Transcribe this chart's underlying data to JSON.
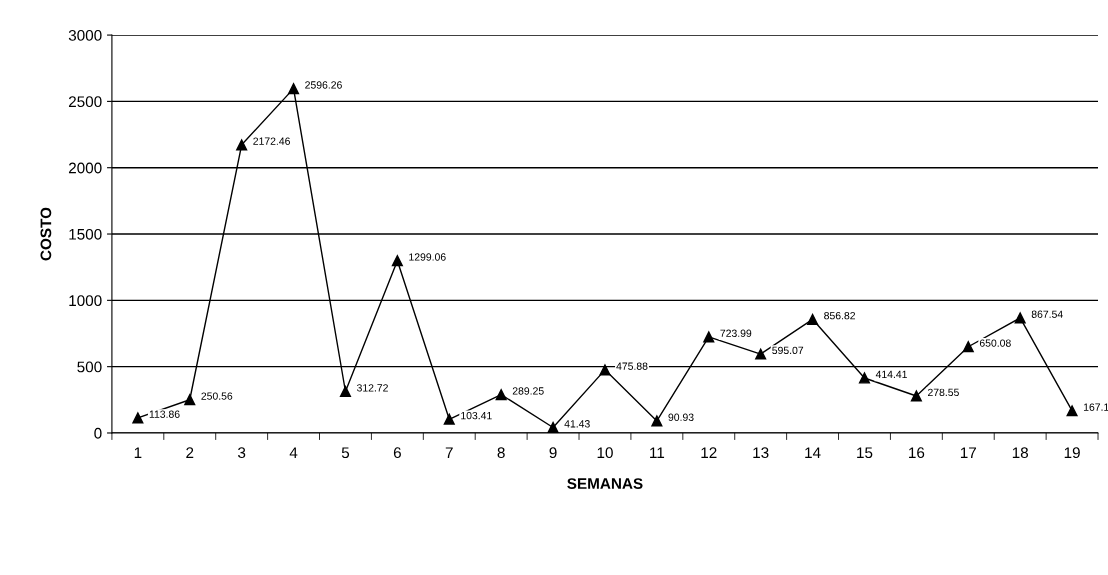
{
  "chart_data": {
    "type": "line",
    "xlabel": "SEMANAS",
    "ylabel": "COSTO",
    "categories": [
      "1",
      "2",
      "3",
      "4",
      "5",
      "6",
      "7",
      "8",
      "9",
      "10",
      "11",
      "12",
      "13",
      "14",
      "15",
      "16",
      "17",
      "18",
      "19"
    ],
    "series": [
      {
        "color": "#000000",
        "values": [
          113.86,
          250.56,
          2172.46,
          2596.26,
          312.72,
          1299.06,
          103.41,
          289.25,
          41.43,
          475.88,
          90.93,
          723.99,
          595.07,
          856.82,
          414.41,
          278.55,
          650.08,
          867.54,
          167.1
        ],
        "value_labels": [
          "113.86",
          "250.56",
          "2172.46",
          "2596.26",
          "312.72",
          "1299.06",
          "103.41",
          "289.25",
          "41.43",
          "475.88",
          "90.93",
          "723.99",
          "595.07",
          "856.82",
          "414.41",
          "278.55",
          "650.08",
          "867.54",
          "167.1"
        ]
      }
    ],
    "ylim": [
      0,
      3000
    ],
    "yticks": [
      0,
      500,
      1000,
      1500,
      2000,
      2500,
      3000
    ],
    "grid": "y",
    "marker": "triangle",
    "line_style": "solid",
    "legend": false
  }
}
